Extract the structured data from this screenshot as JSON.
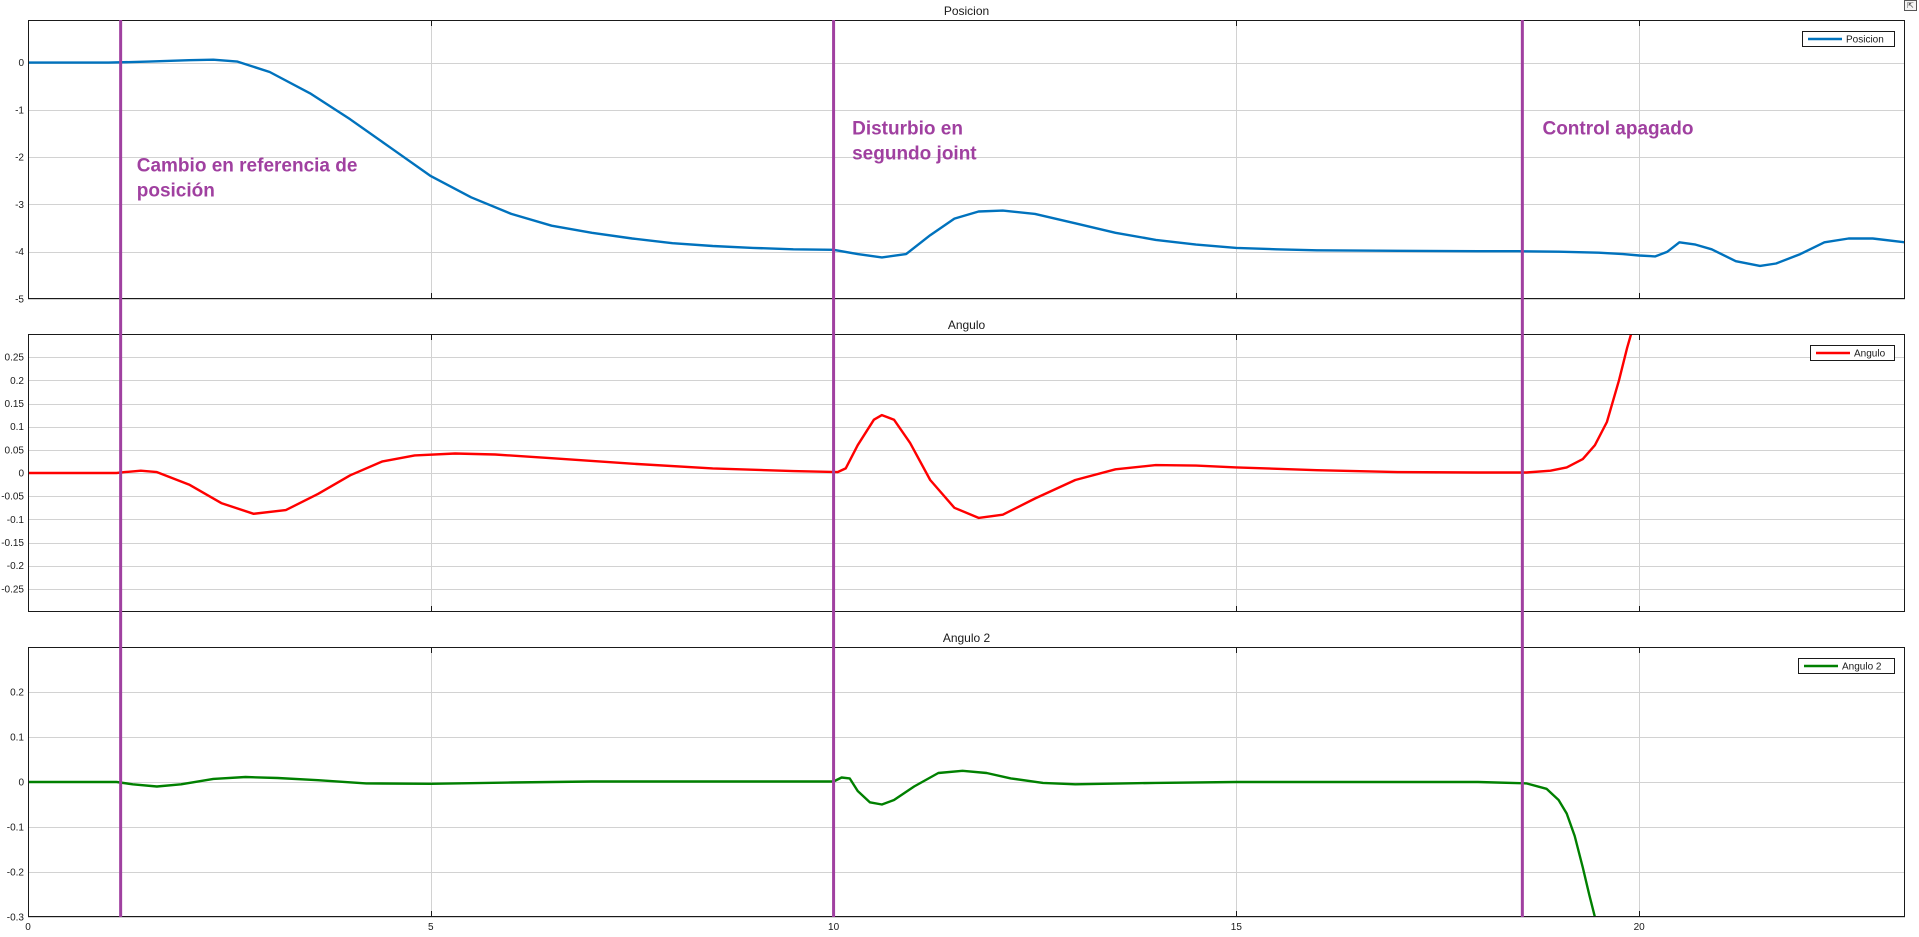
{
  "window": {
    "corner_glyph": "⇱"
  },
  "chart_data": [
    {
      "type": "line",
      "title": "Posicion",
      "xlim": [
        0,
        23.3
      ],
      "ylim": [
        -5,
        0.9
      ],
      "xticks": [
        0,
        5,
        10,
        15,
        20
      ],
      "yticks": [
        0,
        -1,
        -2,
        -3,
        -4,
        -5
      ],
      "ytick_labels": [
        "0",
        "-1",
        "-2",
        "-3",
        "-4",
        "-5"
      ],
      "grid": true,
      "legend": "top-right",
      "series": [
        {
          "name": "Posicion",
          "color": "#0072bd",
          "x": [
            0,
            1.0,
            1.5,
            2.0,
            2.3,
            2.6,
            3.0,
            3.5,
            4.0,
            4.5,
            5.0,
            5.5,
            6.0,
            6.5,
            7.0,
            7.5,
            8.0,
            8.5,
            9.0,
            9.5,
            10.0,
            10.3,
            10.6,
            10.9,
            11.2,
            11.5,
            11.8,
            12.1,
            12.5,
            13.0,
            13.5,
            14.0,
            14.5,
            15.0,
            15.5,
            16.0,
            17.0,
            18.0,
            18.5,
            19.0,
            19.5,
            19.8,
            20.0,
            20.2,
            20.35,
            20.5,
            20.7,
            20.9,
            21.2,
            21.5,
            21.7,
            22.0,
            22.3,
            22.6,
            22.9,
            23.3
          ],
          "y": [
            0,
            0,
            0.02,
            0.05,
            0.06,
            0.02,
            -0.2,
            -0.65,
            -1.2,
            -1.8,
            -2.4,
            -2.85,
            -3.2,
            -3.45,
            -3.6,
            -3.72,
            -3.82,
            -3.88,
            -3.92,
            -3.95,
            -3.96,
            -4.05,
            -4.12,
            -4.05,
            -3.65,
            -3.3,
            -3.15,
            -3.13,
            -3.2,
            -3.4,
            -3.6,
            -3.75,
            -3.85,
            -3.92,
            -3.95,
            -3.97,
            -3.98,
            -3.99,
            -3.99,
            -4.0,
            -4.02,
            -4.05,
            -4.08,
            -4.1,
            -4.0,
            -3.8,
            -3.85,
            -3.95,
            -4.2,
            -4.3,
            -4.25,
            -4.05,
            -3.8,
            -3.72,
            -3.72,
            -3.8
          ]
        }
      ],
      "annotations": [
        {
          "lines": [
            "Cambio en referencia de",
            "posición"
          ],
          "x": 1.35,
          "y": -2.3
        },
        {
          "lines": [
            "Disturbio en",
            "segundo joint"
          ],
          "x": 10.23,
          "y": -1.52
        },
        {
          "lines": [
            "Control apagado"
          ],
          "x": 18.8,
          "y": -1.52
        }
      ]
    },
    {
      "type": "line",
      "title": "Angulo",
      "xlim": [
        0,
        23.3
      ],
      "ylim": [
        -0.3,
        0.3
      ],
      "xticks": [
        0,
        5,
        10,
        15,
        20
      ],
      "yticks": [
        0.25,
        0.2,
        0.15,
        0.1,
        0.05,
        0,
        -0.05,
        -0.1,
        -0.15,
        -0.2,
        -0.25
      ],
      "ytick_labels": [
        "0.25",
        "0.2",
        "0.15",
        "0.1",
        "0.05",
        "0",
        "-0.05",
        "-0.1",
        "-0.15",
        "-0.2",
        "-0.25"
      ],
      "grid": true,
      "legend": "top-right",
      "series": [
        {
          "name": "Angulo",
          "color": "#ff0000",
          "x": [
            0,
            1.1,
            1.2,
            1.4,
            1.6,
            2.0,
            2.4,
            2.8,
            3.2,
            3.6,
            4.0,
            4.4,
            4.8,
            5.3,
            5.8,
            6.5,
            7.5,
            8.5,
            9.5,
            10.05,
            10.15,
            10.3,
            10.5,
            10.6,
            10.75,
            10.95,
            11.2,
            11.5,
            11.8,
            12.1,
            12.5,
            13.0,
            13.5,
            14.0,
            14.5,
            15.0,
            16.0,
            17.0,
            18.0,
            18.6,
            18.9,
            19.1,
            19.3,
            19.45,
            19.6,
            19.75,
            19.85,
            19.9
          ],
          "y": [
            0,
            0,
            0.002,
            0.005,
            0.002,
            -0.025,
            -0.065,
            -0.088,
            -0.08,
            -0.045,
            -0.005,
            0.025,
            0.038,
            0.042,
            0.04,
            0.032,
            0.02,
            0.01,
            0.004,
            0.002,
            0.01,
            0.06,
            0.115,
            0.125,
            0.115,
            0.065,
            -0.015,
            -0.075,
            -0.097,
            -0.09,
            -0.055,
            -0.015,
            0.008,
            0.017,
            0.016,
            0.012,
            0.006,
            0.002,
            0.001,
            0.001,
            0.005,
            0.012,
            0.03,
            0.06,
            0.11,
            0.2,
            0.27,
            0.3
          ]
        }
      ]
    },
    {
      "type": "line",
      "title": "Angulo 2",
      "xlim": [
        0,
        23.3
      ],
      "ylim": [
        -0.3,
        0.3
      ],
      "xticks": [
        0,
        5,
        10,
        15,
        20
      ],
      "yticks": [
        0.2,
        0.1,
        0,
        -0.1,
        -0.2,
        -0.3
      ],
      "ytick_labels": [
        "0.2",
        "0.1",
        "0",
        "-0.1",
        "-0.2",
        "-0.3"
      ],
      "xtick_labels": [
        "0",
        "5",
        "10",
        "15",
        "20"
      ],
      "grid": true,
      "legend": "top-right",
      "series": [
        {
          "name": "Angulo 2",
          "color": "#008000",
          "x": [
            0,
            1.1,
            1.3,
            1.6,
            1.9,
            2.3,
            2.7,
            3.1,
            3.6,
            4.2,
            5.0,
            6.0,
            7.0,
            8.0,
            9.0,
            10.0,
            10.1,
            10.2,
            10.3,
            10.45,
            10.6,
            10.75,
            11.0,
            11.3,
            11.6,
            11.9,
            12.2,
            12.6,
            13.0,
            14.0,
            15.0,
            16.0,
            17.0,
            18.0,
            18.6,
            18.85,
            19.0,
            19.1,
            19.2,
            19.3,
            19.38,
            19.45
          ],
          "y": [
            0,
            0,
            -0.005,
            -0.01,
            -0.005,
            0.007,
            0.011,
            0.009,
            0.004,
            -0.003,
            -0.004,
            -0.001,
            0.001,
            0.001,
            0.001,
            0.001,
            0.01,
            0.008,
            -0.02,
            -0.045,
            -0.05,
            -0.04,
            -0.01,
            0.02,
            0.025,
            0.02,
            0.008,
            -0.002,
            -0.005,
            -0.002,
            0.0,
            0.0,
            0.0,
            0.0,
            -0.003,
            -0.015,
            -0.04,
            -0.07,
            -0.12,
            -0.19,
            -0.25,
            -0.3
          ]
        }
      ]
    }
  ],
  "markers": {
    "color": "#a040a0",
    "x": [
      1.15,
      10.0,
      18.55
    ]
  }
}
